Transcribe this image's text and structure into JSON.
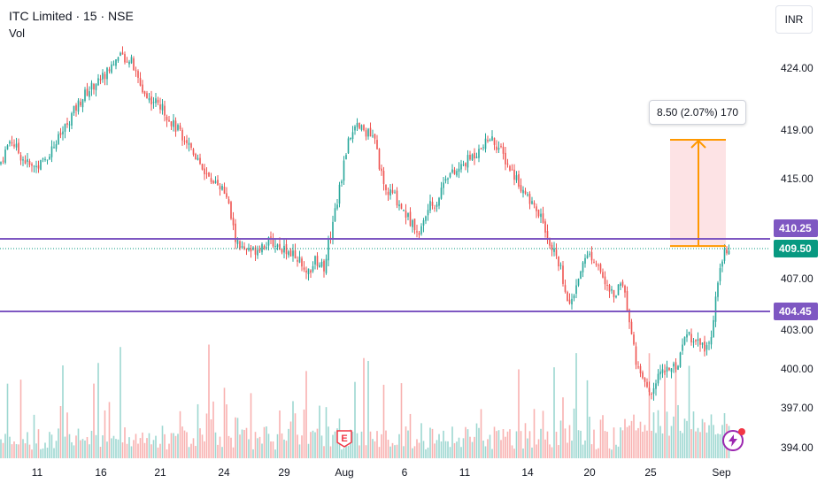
{
  "header": {
    "title": "ITC Limited · 15 · NSE",
    "volume_label": "Vol"
  },
  "currency_button": {
    "label": "INR"
  },
  "price_axis": {
    "ticks": [
      "424.00",
      "419.00",
      "415.00",
      "407.00",
      "403.00",
      "400.00",
      "397.00",
      "394.00"
    ],
    "badges": [
      {
        "label": "410.25",
        "color": "#7e57c2"
      },
      {
        "label": "409.50",
        "color": "#089981"
      },
      {
        "label": "404.45",
        "color": "#7e57c2"
      }
    ]
  },
  "time_axis": {
    "ticks": [
      "11",
      "16",
      "21",
      "24",
      "29",
      "Aug",
      "6",
      "11",
      "14",
      "20",
      "25",
      "Sep"
    ]
  },
  "measure_tool": {
    "label": "8.50 (2.07%) 170",
    "color": "#ff9800"
  },
  "earnings_marker": {
    "label": "E"
  },
  "colors": {
    "up": "#26a69a",
    "down": "#ef5350",
    "line": "#7e57c2",
    "last_price": "#089981"
  },
  "chart_data": {
    "type": "candlestick",
    "price_ylim": [
      393,
      426
    ],
    "horizontal_lines": [
      410.25,
      404.45
    ],
    "last_price": 409.5,
    "measure": {
      "from": 409.7,
      "to": 418.2,
      "change": 8.5,
      "change_pct": 2.07,
      "bars": 170
    },
    "close_path": [
      [
        0,
        416.2
      ],
      [
        12,
        418.3
      ],
      [
        24,
        416.8
      ],
      [
        36,
        415.9
      ],
      [
        48,
        416.3
      ],
      [
        60,
        417.6
      ],
      [
        72,
        419.0
      ],
      [
        84,
        420.6
      ],
      [
        96,
        421.9
      ],
      [
        108,
        422.8
      ],
      [
        120,
        423.6
      ],
      [
        130,
        424.7
      ],
      [
        140,
        424.9
      ],
      [
        148,
        424.6
      ],
      [
        156,
        423.0
      ],
      [
        166,
        421.6
      ],
      [
        176,
        421.3
      ],
      [
        186,
        420.5
      ],
      [
        196,
        419.4
      ],
      [
        206,
        418.6
      ],
      [
        216,
        417.6
      ],
      [
        226,
        416.3
      ],
      [
        236,
        415.0
      ],
      [
        246,
        414.8
      ],
      [
        256,
        413.6
      ],
      [
        266,
        410.2
      ],
      [
        276,
        409.2
      ],
      [
        286,
        409.3
      ],
      [
        296,
        409.8
      ],
      [
        306,
        410.0
      ],
      [
        316,
        409.7
      ],
      [
        326,
        409.3
      ],
      [
        336,
        408.8
      ],
      [
        346,
        407.2
      ],
      [
        356,
        408.5
      ],
      [
        366,
        408.0
      ],
      [
        374,
        410.9
      ],
      [
        384,
        414.3
      ],
      [
        394,
        418.5
      ],
      [
        404,
        419.2
      ],
      [
        414,
        418.9
      ],
      [
        424,
        418.0
      ],
      [
        434,
        414.0
      ],
      [
        444,
        413.8
      ],
      [
        454,
        412.7
      ],
      [
        464,
        411.6
      ],
      [
        474,
        410.7
      ],
      [
        484,
        412.7
      ],
      [
        494,
        413.2
      ],
      [
        504,
        415.4
      ],
      [
        514,
        415.4
      ],
      [
        524,
        416.2
      ],
      [
        534,
        416.9
      ],
      [
        544,
        417.4
      ],
      [
        554,
        418.4
      ],
      [
        564,
        417.5
      ],
      [
        574,
        416.1
      ],
      [
        584,
        415.0
      ],
      [
        594,
        413.6
      ],
      [
        604,
        412.6
      ],
      [
        614,
        411.5
      ],
      [
        624,
        409.5
      ],
      [
        634,
        407.6
      ],
      [
        644,
        404.8
      ],
      [
        654,
        407.4
      ],
      [
        664,
        409.2
      ],
      [
        674,
        408.5
      ],
      [
        684,
        406.4
      ],
      [
        694,
        405.7
      ],
      [
        704,
        406.7
      ],
      [
        712,
        403.4
      ],
      [
        720,
        400.0
      ],
      [
        728,
        398.8
      ],
      [
        736,
        397.8
      ],
      [
        746,
        399.9
      ],
      [
        756,
        399.9
      ],
      [
        766,
        400.4
      ],
      [
        776,
        402.8
      ],
      [
        786,
        402.2
      ],
      [
        796,
        401.5
      ],
      [
        804,
        402.5
      ],
      [
        812,
        407.5
      ],
      [
        818,
        409.4
      ],
      [
        824,
        409.6
      ]
    ],
    "volume_ylim": [
      0,
      100
    ]
  }
}
